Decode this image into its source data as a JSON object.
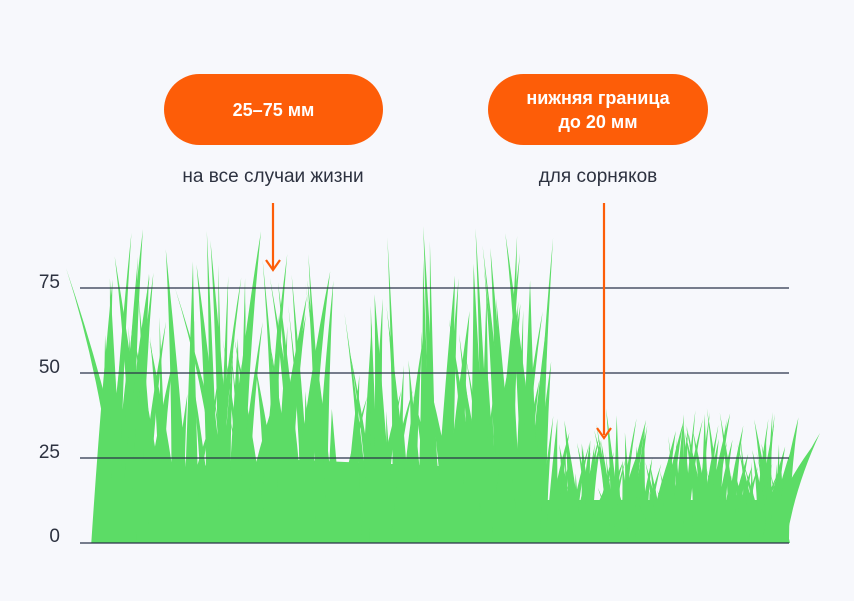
{
  "badges": {
    "left": {
      "text": "25–75 мм"
    },
    "right": {
      "line1": "нижняя граница",
      "line2": "до 20 мм"
    }
  },
  "captions": {
    "left": "на все случаи жизни",
    "right": "для сорняков"
  },
  "scale": {
    "ticks": [
      "0",
      "25",
      "50",
      "75"
    ]
  },
  "colors": {
    "accent": "#fd5d08",
    "grass": "#5cdc66",
    "gridline": "#2a3248",
    "text": "#2d3240",
    "background": "#f7f8fc"
  }
}
